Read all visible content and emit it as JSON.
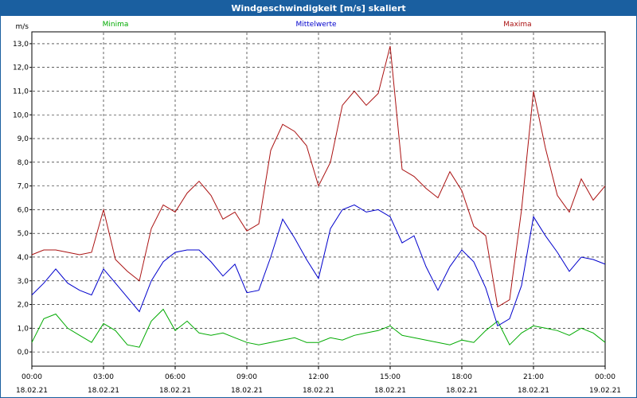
{
  "window": {
    "title": "Windgeschwindigkeit [m/s] skaliert"
  },
  "chart_data": {
    "type": "line",
    "title": "Windgeschwindigkeit [m/s] skaliert",
    "ylabel": "m/s",
    "xlabel": "",
    "ylim": [
      -0.6,
      13.5
    ],
    "xlim_hours": [
      0,
      24
    ],
    "grid": true,
    "y_ticks": [
      "0,0",
      "1,0",
      "2,0",
      "3,0",
      "4,0",
      "5,0",
      "6,0",
      "7,0",
      "8,0",
      "9,0",
      "10,0",
      "11,0",
      "12,0",
      "13,0"
    ],
    "x_ticks": [
      {
        "time": "00:00",
        "date": "18.02.21"
      },
      {
        "time": "03:00",
        "date": "18.02.21"
      },
      {
        "time": "06:00",
        "date": "18.02.21"
      },
      {
        "time": "09:00",
        "date": "18.02.21"
      },
      {
        "time": "12:00",
        "date": "18.02.21"
      },
      {
        "time": "15:00",
        "date": "18.02.21"
      },
      {
        "time": "18:00",
        "date": "18.02.21"
      },
      {
        "time": "21:00",
        "date": "18.02.21"
      },
      {
        "time": "00:00",
        "date": "19.02.21"
      }
    ],
    "x_hours": [
      0,
      0.5,
      1,
      1.5,
      2,
      2.5,
      3,
      3.5,
      4,
      4.5,
      5,
      5.5,
      6,
      6.5,
      7,
      7.5,
      8,
      8.5,
      9,
      9.5,
      10,
      10.5,
      11,
      11.5,
      12,
      12.5,
      13,
      13.5,
      14,
      14.5,
      15,
      15.5,
      16,
      16.5,
      17,
      17.5,
      18,
      18.5,
      19,
      19.5,
      20,
      20.5,
      21,
      21.5,
      22,
      22.5,
      23,
      23.5,
      24
    ],
    "series": [
      {
        "name": "Minima",
        "color": "#00aa00",
        "values": [
          0.4,
          1.4,
          1.6,
          1.0,
          0.7,
          0.4,
          1.2,
          0.9,
          0.3,
          0.2,
          1.3,
          1.8,
          0.9,
          1.3,
          0.8,
          0.7,
          0.8,
          0.6,
          0.4,
          0.3,
          0.4,
          0.5,
          0.6,
          0.4,
          0.4,
          0.6,
          0.5,
          0.7,
          0.8,
          0.9,
          1.1,
          0.7,
          0.6,
          0.5,
          0.4,
          0.3,
          0.5,
          0.4,
          0.9,
          1.3,
          0.3,
          0.8,
          1.1,
          1.0,
          0.9,
          0.7,
          1.0,
          0.8,
          0.4
        ]
      },
      {
        "name": "Mittelwerte",
        "color": "#0000cc",
        "values": [
          2.4,
          2.9,
          3.5,
          2.9,
          2.6,
          2.4,
          3.5,
          2.9,
          2.3,
          1.7,
          3.0,
          3.8,
          4.2,
          4.3,
          4.3,
          3.8,
          3.2,
          3.7,
          2.5,
          2.6,
          4.0,
          5.6,
          4.8,
          3.9,
          3.1,
          5.2,
          6.0,
          6.2,
          5.9,
          6.0,
          5.7,
          4.6,
          4.9,
          3.6,
          2.6,
          3.6,
          4.3,
          3.8,
          2.7,
          1.1,
          1.4,
          2.8,
          5.7,
          4.9,
          4.2,
          3.4,
          4.0,
          3.9,
          3.7
        ]
      },
      {
        "name": "Maxima",
        "color": "#aa1111",
        "values": [
          4.1,
          4.3,
          4.3,
          4.2,
          4.1,
          4.2,
          6.0,
          3.9,
          3.4,
          3.0,
          5.2,
          6.2,
          5.9,
          6.7,
          7.2,
          6.6,
          5.6,
          5.9,
          5.1,
          5.4,
          8.5,
          9.6,
          9.3,
          8.7,
          7.0,
          8.0,
          10.4,
          11.0,
          10.4,
          10.9,
          12.9,
          7.7,
          7.4,
          6.9,
          6.5,
          7.6,
          6.8,
          5.3,
          4.9,
          1.9,
          2.2,
          6.0,
          11.0,
          8.6,
          6.6,
          5.9,
          7.3,
          6.4,
          7.0
        ]
      }
    ]
  }
}
